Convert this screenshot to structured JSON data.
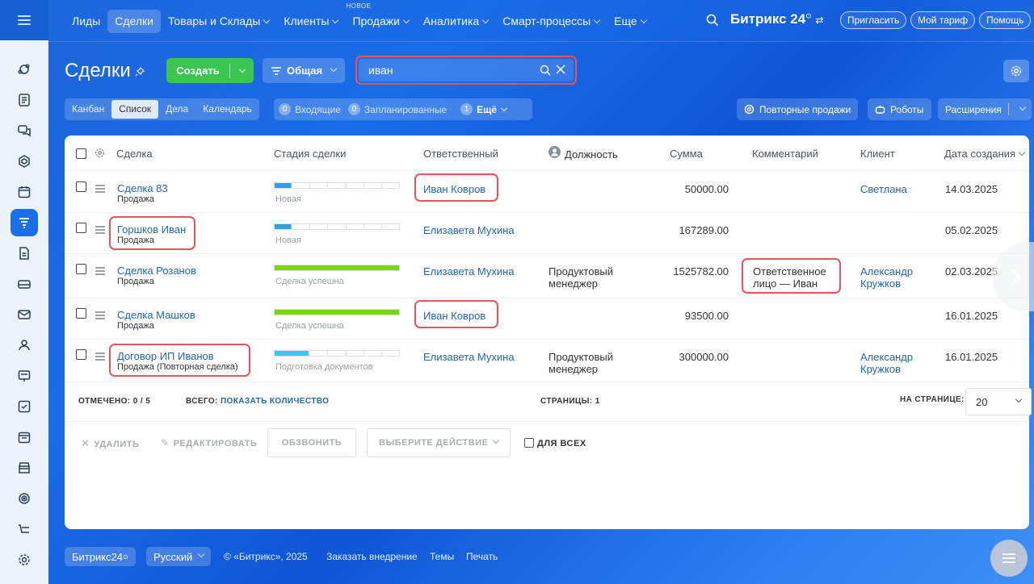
{
  "topnav": {
    "items": [
      {
        "label": "Лиды",
        "active": false,
        "dropdown": false
      },
      {
        "label": "Сделки",
        "active": true,
        "dropdown": false
      },
      {
        "label": "Товары и Склады",
        "active": false,
        "dropdown": true
      },
      {
        "label": "Клиенты",
        "active": false,
        "dropdown": true
      },
      {
        "label": "Продажи",
        "active": false,
        "dropdown": true,
        "badge": "НОВОЕ"
      },
      {
        "label": "Аналитика",
        "active": false,
        "dropdown": true
      },
      {
        "label": "Смарт-процессы",
        "active": false,
        "dropdown": true
      },
      {
        "label": "Еще",
        "active": false,
        "dropdown": true
      }
    ],
    "brand": "Битрикс 24",
    "invite": "Пригласить",
    "tariff": "Мой тариф",
    "help": "Помощь"
  },
  "toolbar": {
    "title": "Сделки",
    "create_label": "Создать",
    "filter_label": "Общая",
    "search_value": "иван"
  },
  "viewtabs": [
    {
      "label": "Канбан",
      "active": false
    },
    {
      "label": "Список",
      "active": true
    },
    {
      "label": "Дела",
      "active": false
    },
    {
      "label": "Календарь",
      "active": false
    }
  ],
  "counters": {
    "incoming_count": "0",
    "incoming_label": "Входящие",
    "planned_count": "0",
    "planned_label": "Запланированные",
    "more_count": "1",
    "more_label": "Ещё"
  },
  "right_buttons": {
    "repeat_sales": "Повторные продажи",
    "robots": "Роботы",
    "extensions": "Расширения"
  },
  "table": {
    "headers": {
      "deal": "Сделка",
      "stage": "Стадия сделки",
      "responsible": "Ответственный",
      "position": "Должность",
      "sum": "Сумма",
      "comment": "Комментарий",
      "client": "Клиент",
      "created": "Дата создания"
    },
    "rows": [
      {
        "deal": "Сделка 83",
        "type": "Продажа",
        "stage": "Новая",
        "stage_fill": 0.14,
        "stage_color": "#2fa0e6",
        "responsible": "Иван Ковров",
        "position": "",
        "sum": "50000.00",
        "comment": "",
        "client": "Светлана",
        "created": "14.03.2025"
      },
      {
        "deal": "Горшков Иван",
        "type": "Продажа",
        "stage": "Новая",
        "stage_fill": 0.14,
        "stage_color": "#2fa0e6",
        "responsible": "Елизавета Мухина",
        "position": "",
        "sum": "167289.00",
        "comment": "",
        "client": "",
        "created": "05.02.2025"
      },
      {
        "deal": "Сделка Розанов",
        "type": "Продажа",
        "stage": "Сделка успешна",
        "stage_fill": 1.0,
        "stage_color": "#7bd500",
        "responsible": "Елизавета Мухина",
        "position": "Продуктовый менеджер",
        "sum": "1525782.00",
        "comment": "Ответственное лицо — Иван",
        "client": "Александр Кружков",
        "created": "02.03.2025"
      },
      {
        "deal": "Сделка Машков",
        "type": "Продажа",
        "stage": "Сделка успешна",
        "stage_fill": 1.0,
        "stage_color": "#7bd500",
        "responsible": "Иван Ковров",
        "position": "",
        "sum": "93500.00",
        "comment": "",
        "client": "",
        "created": "16.01.2025"
      },
      {
        "deal": "Договор ИП Иванов",
        "type": "Продажа (Повторная сделка)",
        "stage": "Подготовка документов",
        "stage_fill": 0.28,
        "stage_color": "#3fc3f0",
        "responsible": "Елизавета Мухина",
        "position": "Продуктовый менеджер",
        "sum": "300000.00",
        "comment": "",
        "client": "Александр Кружков",
        "created": "16.01.2025"
      }
    ]
  },
  "footer": {
    "marked_label": "ОТМЕЧЕНО:",
    "marked_value": "0 / 5",
    "total_label": "ВСЕГО:",
    "total_link": "ПОКАЗАТЬ КОЛИЧЕСТВО",
    "pages_label": "СТРАНИЦЫ:",
    "pages_value": "1",
    "per_page_label": "НА СТРАНИЦЕ:",
    "per_page_value": "20"
  },
  "actions": {
    "delete": "УДАЛИТЬ",
    "edit": "РЕДАКТИРОВАТЬ",
    "call": "ОБЗВОНИТЬ",
    "select_action": "ВЫБЕРИТЕ ДЕЙСТВИЕ",
    "for_all": "ДЛЯ ВСЕХ"
  },
  "bottom": {
    "brand": "Битрикс24",
    "language": "Русский",
    "copyright": "© «Битрикс», 2025",
    "order": "Заказать внедрение",
    "themes": "Темы",
    "print": "Печать"
  },
  "colors": {
    "accent": "#1a6fe6",
    "create": "#3bc651",
    "highlight": "#e8545a",
    "link": "#2067b0"
  }
}
